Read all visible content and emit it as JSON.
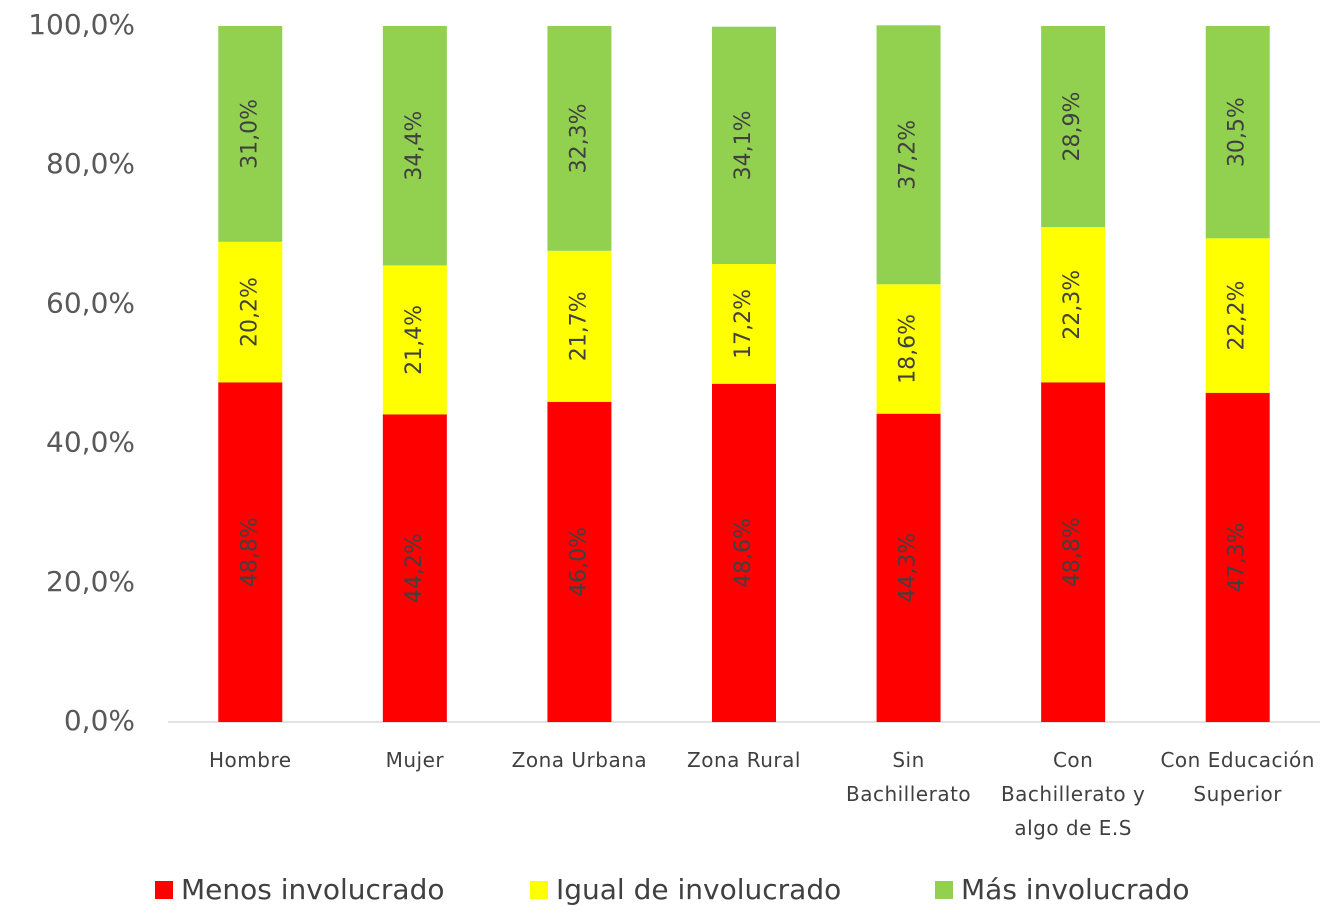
{
  "chart_data": {
    "type": "stacked_bar",
    "categories": [
      "Hombre",
      "Mujer",
      "Zona Urbana",
      "Zona Rural",
      "Sin Bachillerato",
      "Con Bachillerato y algo de E.S",
      "Con Educación Superior"
    ],
    "series": [
      {
        "name": "Menos involucrado",
        "color": "#ff0000",
        "values": [
          48.8,
          44.2,
          46.0,
          48.6,
          44.3,
          48.8,
          47.3
        ],
        "value_labels": [
          "48,8%",
          "44,2%",
          "46,0%",
          "48,6%",
          "44,3%",
          "48,8%",
          "47,3%"
        ]
      },
      {
        "name": "Igual de involucrado",
        "color": "#ffff00",
        "values": [
          20.2,
          21.4,
          21.7,
          17.2,
          18.6,
          22.3,
          22.2
        ],
        "value_labels": [
          "20,2%",
          "21,4%",
          "21,7%",
          "17,2%",
          "18,6%",
          "22,3%",
          "22,2%"
        ]
      },
      {
        "name": "Más involucrado",
        "color": "#92d050",
        "values": [
          31.0,
          34.4,
          32.3,
          34.1,
          37.2,
          28.9,
          30.5
        ],
        "value_labels": [
          "31,0%",
          "34,4%",
          "32,3%",
          "34,1%",
          "37,2%",
          "28,9%",
          "30,5%"
        ]
      }
    ],
    "ylim": [
      0,
      100
    ],
    "yticks": [
      {
        "value": 0,
        "label": "0,0%"
      },
      {
        "value": 20,
        "label": "20,0%"
      },
      {
        "value": 40,
        "label": "40,0%"
      },
      {
        "value": 60,
        "label": "60,0%"
      },
      {
        "value": 80,
        "label": "80,0%"
      },
      {
        "value": 100,
        "label": "100,0%"
      }
    ],
    "legend": "bottom"
  }
}
